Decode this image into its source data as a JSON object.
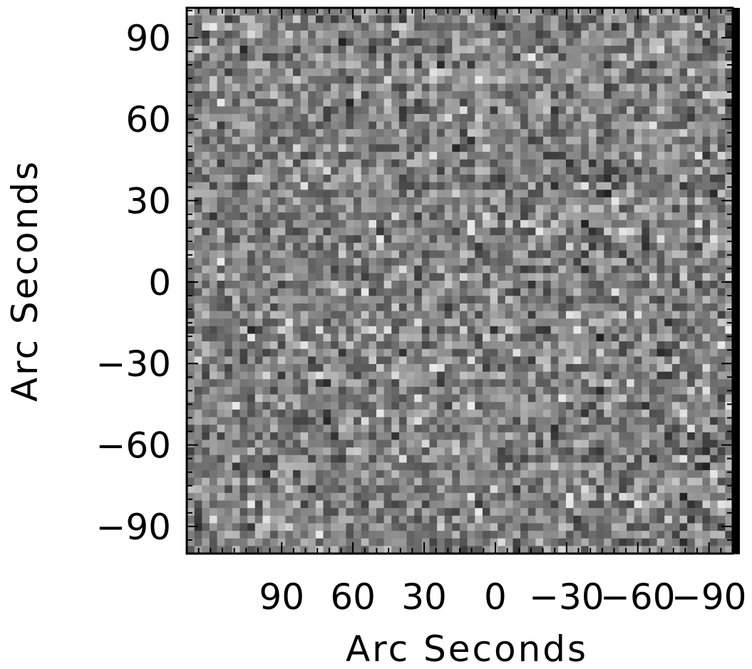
{
  "chart_data": {
    "type": "heatmap",
    "title": "",
    "xlabel": "Arc Seconds",
    "ylabel": "Arc Seconds",
    "colormap": "grayscale",
    "grid": false,
    "x_axis": {
      "reversed": true,
      "ticks": [
        90,
        60,
        30,
        0,
        -30,
        -60,
        -90
      ],
      "tick_labels": [
        "90",
        "60",
        "30",
        "0",
        "−30",
        "−60",
        "−90"
      ]
    },
    "y_axis": {
      "ticks": [
        90,
        60,
        30,
        0,
        -30,
        -60,
        -90
      ],
      "tick_labels": [
        "90",
        "60",
        "30",
        "0",
        "−30",
        "−60",
        "−90"
      ]
    },
    "xlim": [
      130,
      -100
    ],
    "ylim": [
      -100,
      101
    ],
    "grid_size": [
      72,
      72
    ],
    "pixel_value_range": [
      0,
      1
    ],
    "description_of_values": "noise-like grayscale intensities, mid-gray mean with sparse bright pixels"
  }
}
